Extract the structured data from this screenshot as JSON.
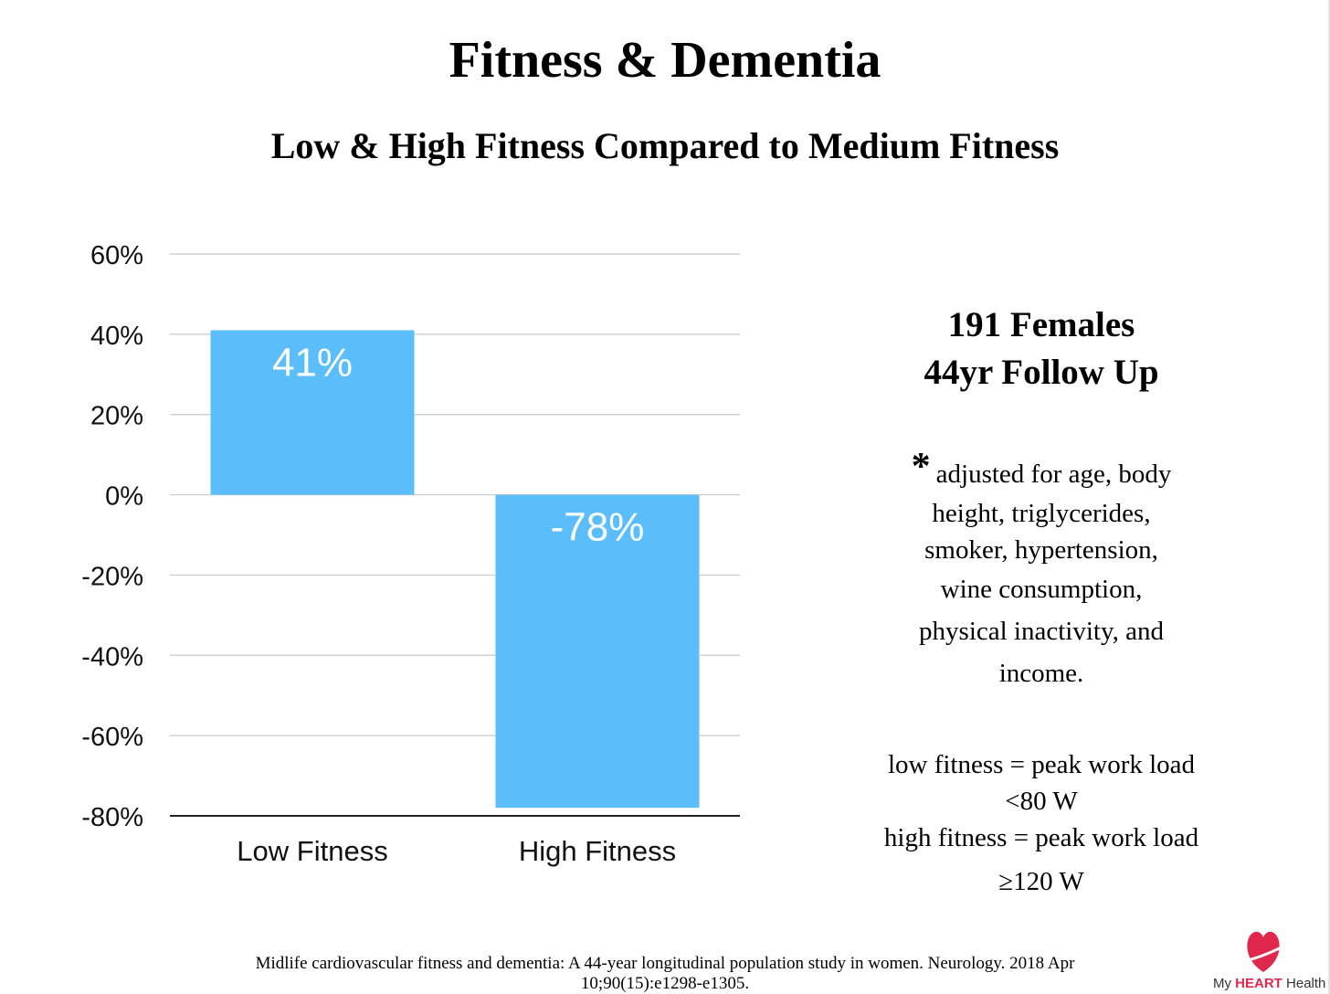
{
  "title": "Fitness & Dementia",
  "subtitle": "Low & High Fitness Compared to Medium Fitness",
  "study": {
    "line1": "191 Females",
    "line2": "44yr Follow Up"
  },
  "adjustment": {
    "asterisk": "*",
    "line1": "adjusted for age, body",
    "line2": "height, triglycerides,",
    "line3": "smoker, hypertension,",
    "line4": "wine consumption,",
    "line5": "physical inactivity, and",
    "line6": "income."
  },
  "definitions": {
    "low_line1": "low fitness = peak work load",
    "low_line2": "<80 W",
    "high_line1": "high fitness = peak work load",
    "high_line2": "≥120 W"
  },
  "citation": {
    "line1": "Midlife cardiovascular fitness and dementia: A 44-year longitudinal population study in women. Neurology. 2018 Apr",
    "line2": "10;90(15):e1298-e1305."
  },
  "logo": {
    "my": "My",
    "heart": "HEART",
    "health": "Health"
  },
  "colors": {
    "bar": "#5bbefb",
    "grid": "#c8c8c8",
    "axis": "#222222",
    "logo_red": "#e0284e"
  },
  "chart_data": {
    "type": "bar",
    "title": "Low & High Fitness Compared to Medium Fitness",
    "xlabel": "",
    "ylabel": "",
    "categories": [
      "Low Fitness",
      "High Fitness"
    ],
    "values": [
      41,
      -78
    ],
    "data_labels": [
      "41%",
      "-78%"
    ],
    "ylim": [
      -80,
      60
    ],
    "yticks": [
      60,
      40,
      20,
      0,
      -20,
      -40,
      -60,
      -80
    ],
    "ytick_labels": [
      "60%",
      "40%",
      "20%",
      "0%",
      "-20%",
      "-40%",
      "-60%",
      "-80%"
    ],
    "grid": true,
    "legend": "none"
  }
}
